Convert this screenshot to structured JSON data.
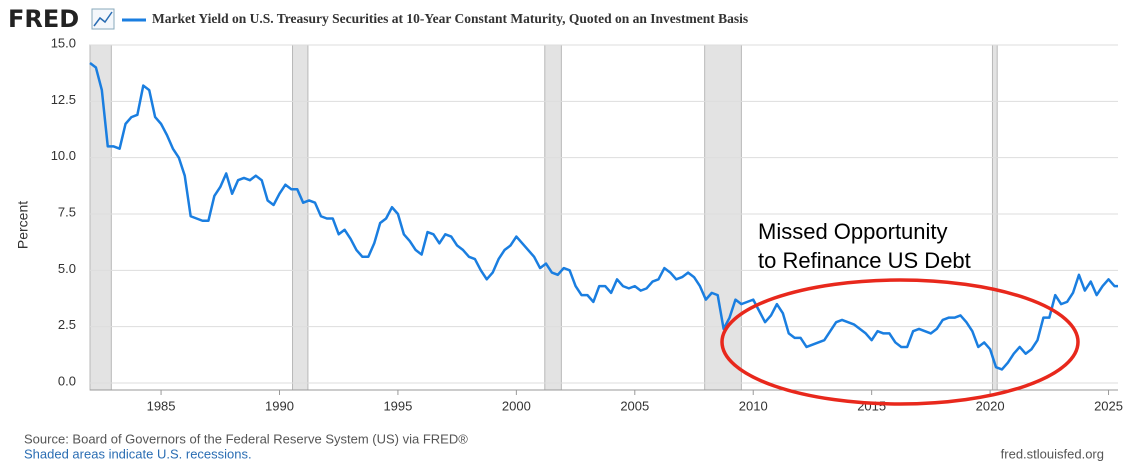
{
  "logo": "FRED",
  "chart_data": {
    "type": "line",
    "title": "Market Yield on U.S. Treasury Securities at 10-Year Constant Maturity, Quoted on an Investment Basis",
    "y_label": "Percent",
    "annotation": [
      "Missed Opportunity",
      "to Refinance US Debt"
    ],
    "source": "Source: Board of Governors of the Federal Reserve System (US) via FRED®",
    "note": "Shaded areas indicate U.S. recessions.",
    "credit": "fred.stlouisfed.org",
    "xlim": [
      1982.0,
      2025.4
    ],
    "xticks": [
      1985,
      1990,
      1995,
      2000,
      2005,
      2010,
      2015,
      2020,
      2025
    ],
    "ylim": [
      0,
      15
    ],
    "yticks": [
      {
        "value": 0,
        "label": "0.0"
      },
      2.5,
      {
        "value": 5,
        "label": "5.0"
      },
      7.5,
      {
        "value": 10,
        "label": "10.0"
      },
      12.5,
      {
        "value": 15,
        "label": "15.0"
      }
    ],
    "grid": true,
    "recessions": [
      [
        1982.0,
        1982.9
      ],
      [
        1990.55,
        1991.2
      ],
      [
        2001.2,
        2001.9
      ],
      [
        2007.95,
        2009.5
      ],
      [
        2020.1,
        2020.3
      ]
    ],
    "series": [
      {
        "name": "Market Yield on U.S. Treasury Securities at 10-Year Constant Maturity, Quoted on an Investment Basis",
        "color": "#1a7ee0",
        "x": [
          1982.0,
          1982.25,
          1982.5,
          1982.75,
          1983.0,
          1983.25,
          1983.5,
          1983.75,
          1984.0,
          1984.25,
          1984.5,
          1984.75,
          1985.0,
          1985.25,
          1985.5,
          1985.75,
          1986.0,
          1986.25,
          1986.5,
          1986.75,
          1987.0,
          1987.25,
          1987.5,
          1987.75,
          1988.0,
          1988.25,
          1988.5,
          1988.75,
          1989.0,
          1989.25,
          1989.5,
          1989.75,
          1990.0,
          1990.25,
          1990.5,
          1990.75,
          1991.0,
          1991.25,
          1991.5,
          1991.75,
          1992.0,
          1992.25,
          1992.5,
          1992.75,
          1993.0,
          1993.25,
          1993.5,
          1993.75,
          1994.0,
          1994.25,
          1994.5,
          1994.75,
          1995.0,
          1995.25,
          1995.5,
          1995.75,
          1996.0,
          1996.25,
          1996.5,
          1996.75,
          1997.0,
          1997.25,
          1997.5,
          1997.75,
          1998.0,
          1998.25,
          1998.5,
          1998.75,
          1999.0,
          1999.25,
          1999.5,
          1999.75,
          2000.0,
          2000.25,
          2000.5,
          2000.75,
          2001.0,
          2001.25,
          2001.5,
          2001.75,
          2002.0,
          2002.25,
          2002.5,
          2002.75,
          2003.0,
          2003.25,
          2003.5,
          2003.75,
          2004.0,
          2004.25,
          2004.5,
          2004.75,
          2005.0,
          2005.25,
          2005.5,
          2005.75,
          2006.0,
          2006.25,
          2006.5,
          2006.75,
          2007.0,
          2007.25,
          2007.5,
          2007.75,
          2008.0,
          2008.25,
          2008.5,
          2008.75,
          2009.0,
          2009.25,
          2009.5,
          2009.75,
          2010.0,
          2010.25,
          2010.5,
          2010.75,
          2011.0,
          2011.25,
          2011.5,
          2011.75,
          2012.0,
          2012.25,
          2012.5,
          2012.75,
          2013.0,
          2013.25,
          2013.5,
          2013.75,
          2014.0,
          2014.25,
          2014.5,
          2014.75,
          2015.0,
          2015.25,
          2015.5,
          2015.75,
          2016.0,
          2016.25,
          2016.5,
          2016.75,
          2017.0,
          2017.25,
          2017.5,
          2017.75,
          2018.0,
          2018.25,
          2018.5,
          2018.75,
          2019.0,
          2019.25,
          2019.5,
          2019.75,
          2020.0,
          2020.25,
          2020.5,
          2020.75,
          2021.0,
          2021.25,
          2021.5,
          2021.75,
          2022.0,
          2022.25,
          2022.5,
          2022.75,
          2023.0,
          2023.25,
          2023.5,
          2023.75,
          2024.0,
          2024.25,
          2024.5,
          2024.75,
          2025.0,
          2025.25,
          2025.4
        ],
        "values": [
          14.2,
          14.0,
          13.0,
          10.5,
          10.5,
          10.4,
          11.5,
          11.8,
          11.9,
          13.2,
          13.0,
          11.8,
          11.5,
          11.0,
          10.4,
          10.0,
          9.2,
          7.4,
          7.3,
          7.2,
          7.2,
          8.3,
          8.7,
          9.3,
          8.4,
          9.0,
          9.1,
          9.0,
          9.2,
          9.0,
          8.1,
          7.9,
          8.4,
          8.8,
          8.6,
          8.6,
          8.0,
          8.1,
          8.0,
          7.4,
          7.3,
          7.3,
          6.6,
          6.8,
          6.4,
          5.9,
          5.6,
          5.6,
          6.2,
          7.1,
          7.3,
          7.8,
          7.5,
          6.6,
          6.3,
          5.9,
          5.7,
          6.7,
          6.6,
          6.2,
          6.6,
          6.5,
          6.1,
          5.9,
          5.6,
          5.5,
          5.0,
          4.6,
          4.9,
          5.5,
          5.9,
          6.1,
          6.5,
          6.2,
          5.9,
          5.6,
          5.1,
          5.3,
          4.9,
          4.8,
          5.1,
          5.0,
          4.3,
          3.9,
          3.9,
          3.6,
          4.3,
          4.3,
          4.0,
          4.6,
          4.3,
          4.2,
          4.3,
          4.1,
          4.2,
          4.5,
          4.6,
          5.1,
          4.9,
          4.6,
          4.7,
          4.9,
          4.7,
          4.3,
          3.7,
          4.0,
          3.9,
          2.4,
          2.9,
          3.7,
          3.5,
          3.6,
          3.7,
          3.2,
          2.7,
          3.0,
          3.5,
          3.1,
          2.2,
          2.0,
          2.0,
          1.6,
          1.7,
          1.8,
          1.9,
          2.3,
          2.7,
          2.8,
          2.7,
          2.6,
          2.4,
          2.2,
          1.9,
          2.3,
          2.2,
          2.2,
          1.8,
          1.6,
          1.6,
          2.3,
          2.4,
          2.3,
          2.2,
          2.4,
          2.8,
          2.9,
          2.9,
          3.0,
          2.7,
          2.3,
          1.6,
          1.8,
          1.5,
          0.7,
          0.6,
          0.9,
          1.3,
          1.6,
          1.3,
          1.5,
          1.9,
          2.9,
          2.9,
          3.9,
          3.5,
          3.6,
          4.0,
          4.8,
          4.1,
          4.5,
          3.9,
          4.3,
          4.6,
          4.3,
          4.3
        ]
      }
    ]
  }
}
